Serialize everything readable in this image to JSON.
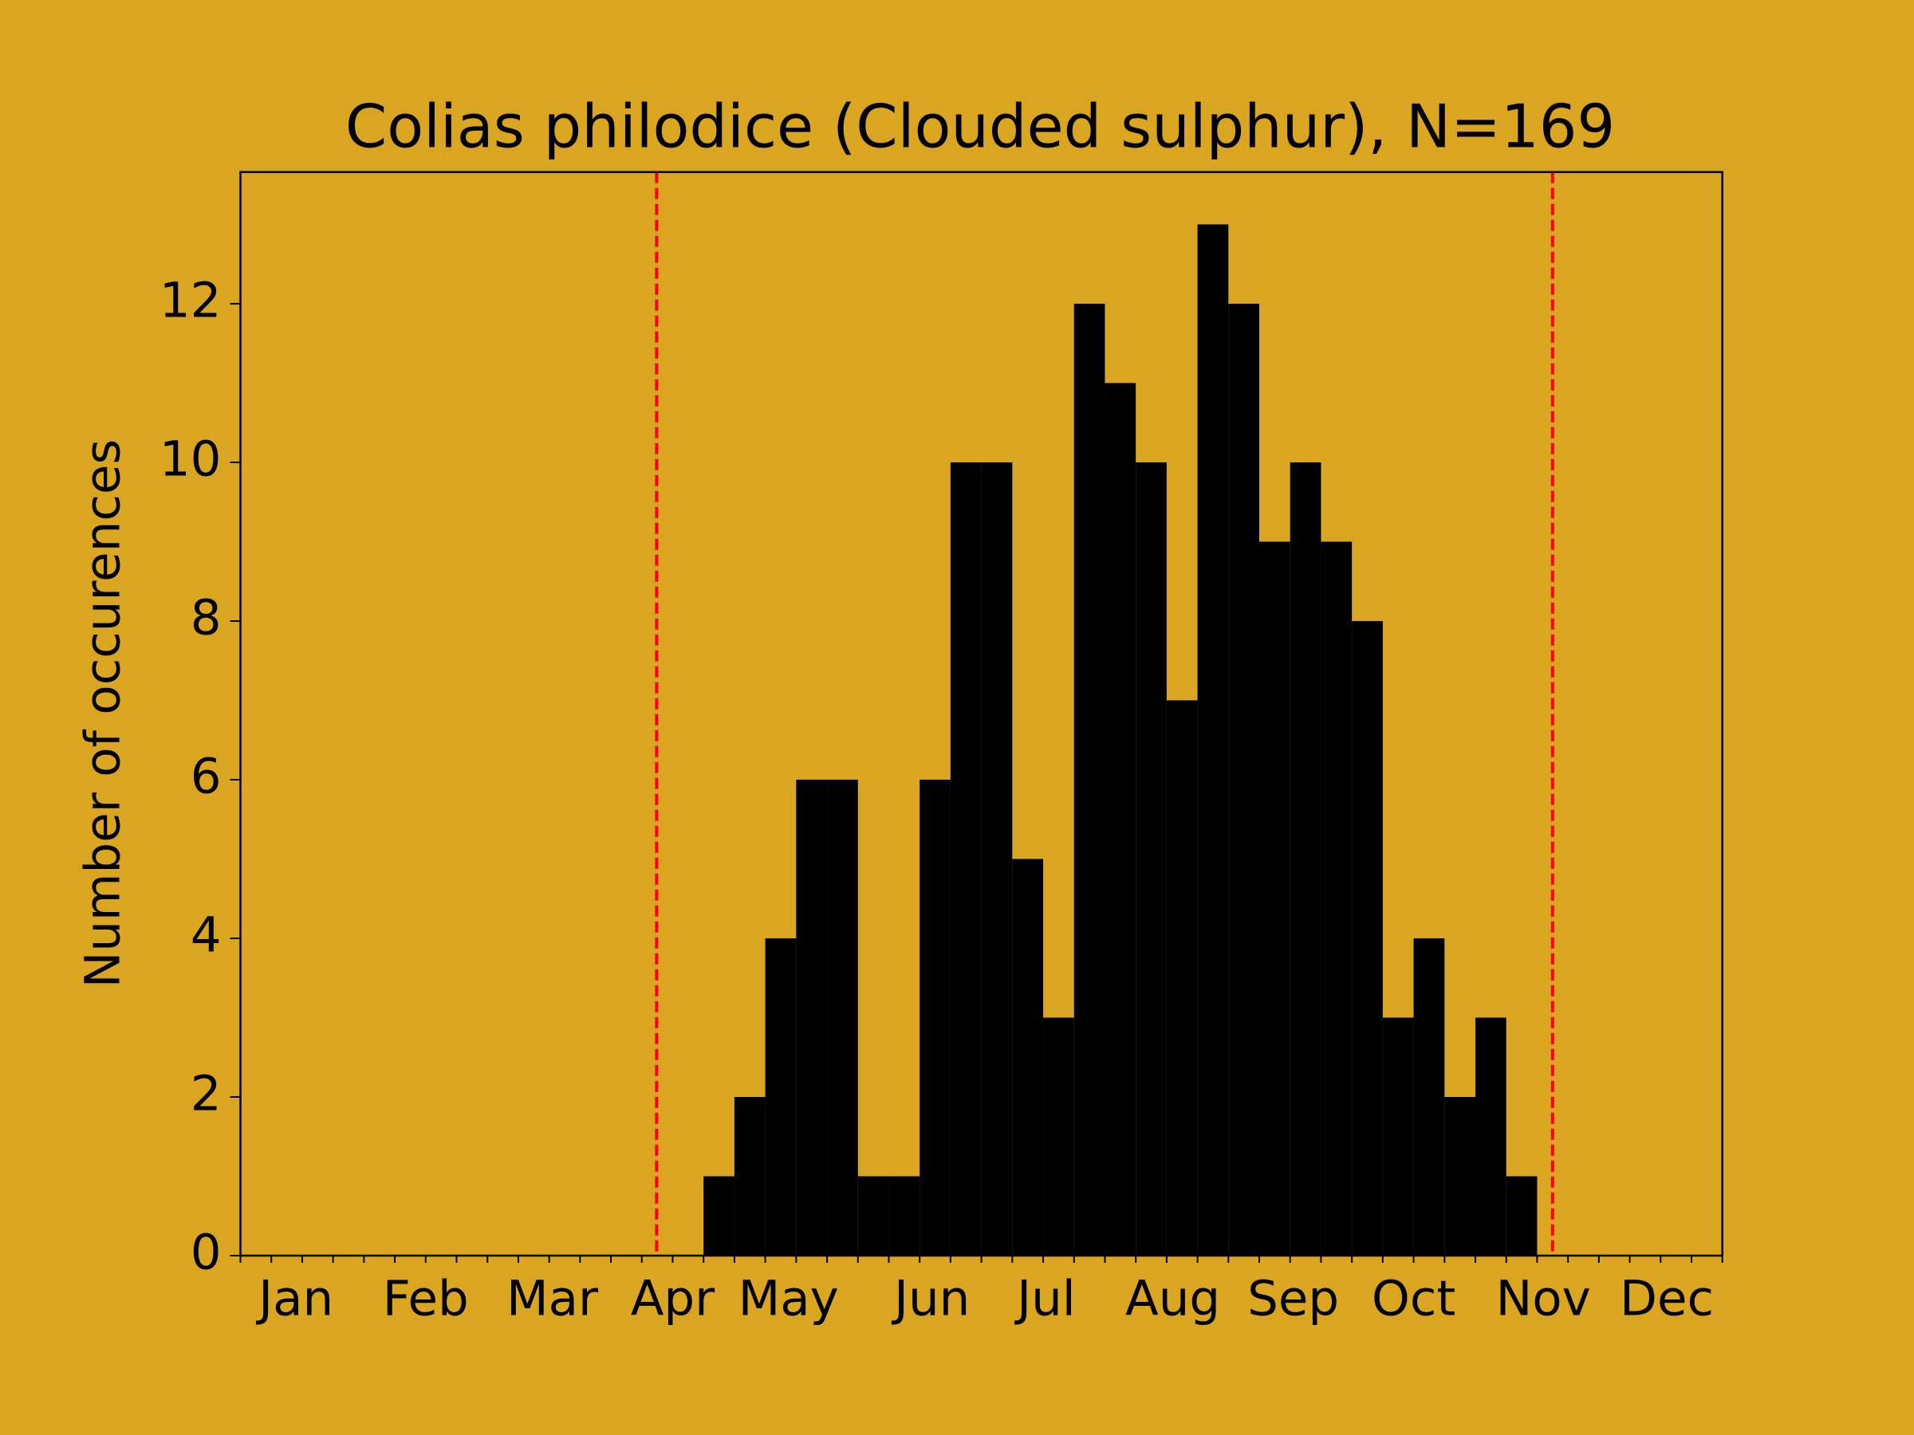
{
  "chart_data": {
    "type": "histogram",
    "title": "Colias philodice (Clouded sulphur), N=169",
    "ylabel": "Number of occurences",
    "bins": [
      15,
      16,
      17,
      18,
      19,
      20,
      21,
      22,
      23,
      24,
      25,
      26,
      27,
      28,
      29,
      30,
      31,
      32,
      33,
      34,
      35,
      36,
      37,
      38,
      39,
      40,
      41,
      42
    ],
    "values": [
      1,
      2,
      4,
      6,
      6,
      1,
      1,
      6,
      10,
      10,
      5,
      3,
      12,
      11,
      10,
      7,
      13,
      12,
      9,
      10,
      9,
      8,
      3,
      4,
      2,
      3,
      1
    ],
    "color": "#000000",
    "background": "#daa520",
    "xlim": [
      0,
      48
    ],
    "xticks": [
      {
        "value": 1.8,
        "label": "Jan"
      },
      {
        "value": 6.0,
        "label": "Feb"
      },
      {
        "value": 10.1,
        "label": "Mar"
      },
      {
        "value": 14.0,
        "label": "Apr"
      },
      {
        "value": 17.75,
        "label": "May"
      },
      {
        "value": 22.4,
        "label": "Jun"
      },
      {
        "value": 26.1,
        "label": "Jul"
      },
      {
        "value": 30.2,
        "label": "Aug"
      },
      {
        "value": 34.1,
        "label": "Sep"
      },
      {
        "value": 38.0,
        "label": "Oct"
      },
      {
        "value": 42.2,
        "label": "Nov"
      },
      {
        "value": 46.2,
        "label": "Dec"
      }
    ],
    "ylim": [
      0,
      13.66
    ],
    "yticks": [
      0,
      2,
      4,
      6,
      8,
      10,
      12
    ],
    "vlines": {
      "x": [
        13.48,
        42.5
      ],
      "color": "#ff0000",
      "style": "dashed"
    }
  }
}
